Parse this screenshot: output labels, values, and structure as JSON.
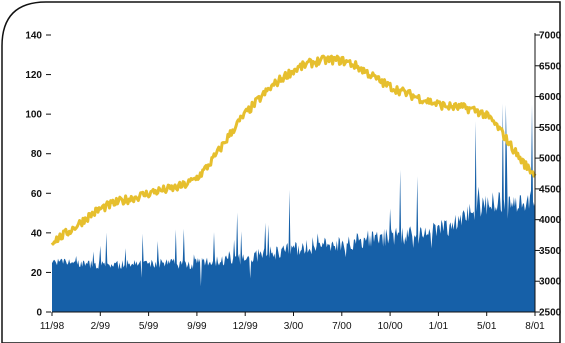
{
  "chart_data": {
    "type": "area",
    "title": "",
    "xlabel": "",
    "ylabel": "",
    "left_axis": {
      "ylim": [
        0,
        140
      ],
      "ticks": [
        0,
        20,
        40,
        60,
        80,
        100,
        120,
        140
      ],
      "tick_labels": [
        "0",
        "20",
        "40",
        "60",
        "80",
        "100",
        "120",
        "140"
      ]
    },
    "right_axis": {
      "ylim": [
        2500,
        7000
      ],
      "ticks": [
        2500,
        3000,
        3500,
        4000,
        4500,
        5000,
        5500,
        6000,
        6500,
        7000
      ],
      "tick_labels": [
        "2500",
        "3000",
        "3500",
        "4000",
        "4500",
        "5000",
        "5500",
        "6000",
        "6500",
        "7000"
      ]
    },
    "x_ticks": [
      "11/98",
      "2/99",
      "5/99",
      "9/99",
      "12/99",
      "3/00",
      "7/00",
      "10/00",
      "1/01",
      "5/01",
      "8/01"
    ],
    "grid": false,
    "legend": "none",
    "series": [
      {
        "kind": "area",
        "axis": "right",
        "color": "#1660a8",
        "x": [
          "11/98",
          "2/99",
          "5/99",
          "9/99",
          "12/99",
          "3/00",
          "7/00",
          "10/00",
          "1/01",
          "5/01",
          "8/01"
        ],
        "values": [
          3320,
          3270,
          3280,
          3300,
          3380,
          3520,
          3620,
          3720,
          3820,
          4250,
          4300
        ]
      },
      {
        "kind": "line",
        "axis": "left",
        "color": "#e6bf2e",
        "x": [
          "11/98",
          "2/99",
          "5/99",
          "9/99",
          "12/99",
          "3/00",
          "7/00",
          "10/00",
          "1/01",
          "5/01",
          "8/01"
        ],
        "values": [
          36,
          52,
          60,
          68,
          100,
          122,
          127,
          114,
          105,
          99,
          70
        ]
      }
    ]
  }
}
